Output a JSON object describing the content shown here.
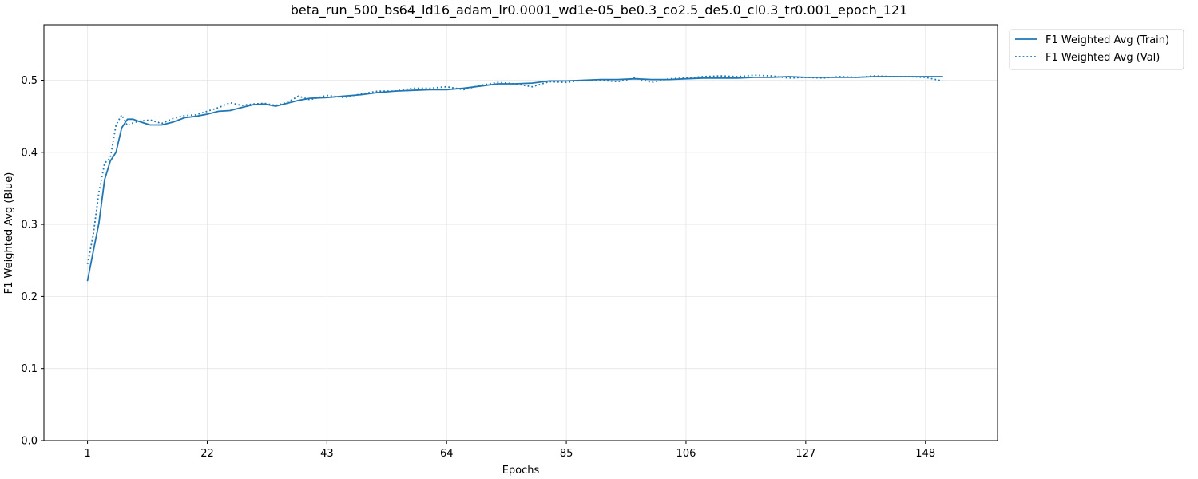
{
  "chart_data": {
    "type": "line",
    "title": "beta_run_500_bs64_ld16_adam_lr0.0001_wd1e-05_be0.3_co2.5_de5.0_cl0.3_tr0.001_epoch_121",
    "xlabel": "Epochs",
    "ylabel": "F1 Weighted Avg (Blue)",
    "xlim": [
      -6.65,
      160.65
    ],
    "ylim": [
      0.0,
      0.577
    ],
    "xticks": [
      1,
      22,
      43,
      64,
      85,
      106,
      127,
      148
    ],
    "yticks": [
      0.0,
      0.1,
      0.2,
      0.3,
      0.4,
      0.5
    ],
    "ytick_labels": [
      "0.0",
      "0.1",
      "0.2",
      "0.3",
      "0.4",
      "0.5"
    ],
    "grid": true,
    "legend_position": "outside-top-right",
    "colors": {
      "line": "#1f77b4",
      "grid": "#e6e6e6"
    },
    "series": [
      {
        "name": "F1 Weighted Avg (Train)",
        "style": "solid",
        "x": [
          1,
          2,
          3,
          4,
          5,
          6,
          7,
          8,
          9,
          10,
          12,
          14,
          16,
          18,
          20,
          22,
          24,
          26,
          28,
          30,
          32,
          34,
          36,
          38,
          40,
          43,
          46,
          49,
          52,
          55,
          58,
          61,
          64,
          67,
          70,
          73,
          76,
          79,
          82,
          85,
          88,
          91,
          94,
          97,
          100,
          103,
          106,
          109,
          112,
          115,
          118,
          121,
          124,
          127,
          130,
          133,
          136,
          139,
          142,
          145,
          148,
          151
        ],
        "values": [
          0.222,
          0.262,
          0.302,
          0.362,
          0.388,
          0.4,
          0.434,
          0.446,
          0.446,
          0.443,
          0.438,
          0.438,
          0.442,
          0.448,
          0.45,
          0.453,
          0.457,
          0.458,
          0.462,
          0.466,
          0.467,
          0.464,
          0.468,
          0.472,
          0.475,
          0.476,
          0.478,
          0.48,
          0.483,
          0.485,
          0.486,
          0.487,
          0.487,
          0.489,
          0.492,
          0.495,
          0.495,
          0.496,
          0.499,
          0.499,
          0.5,
          0.501,
          0.501,
          0.502,
          0.501,
          0.501,
          0.502,
          0.503,
          0.503,
          0.503,
          0.504,
          0.504,
          0.505,
          0.504,
          0.504,
          0.504,
          0.504,
          0.505,
          0.505,
          0.505,
          0.505,
          0.505
        ]
      },
      {
        "name": "F1 Weighted Avg (Val)",
        "style": "dotted",
        "x": [
          1,
          2,
          3,
          4,
          5,
          6,
          7,
          8,
          9,
          10,
          12,
          14,
          16,
          18,
          20,
          22,
          24,
          26,
          28,
          30,
          32,
          34,
          36,
          38,
          40,
          43,
          46,
          49,
          52,
          55,
          58,
          61,
          64,
          67,
          70,
          73,
          76,
          79,
          82,
          85,
          88,
          91,
          94,
          97,
          100,
          103,
          106,
          109,
          112,
          115,
          118,
          121,
          124,
          127,
          130,
          133,
          136,
          139,
          142,
          145,
          148,
          151
        ],
        "values": [
          0.245,
          0.285,
          0.345,
          0.385,
          0.392,
          0.438,
          0.452,
          0.437,
          0.441,
          0.443,
          0.445,
          0.44,
          0.447,
          0.451,
          0.452,
          0.457,
          0.462,
          0.469,
          0.465,
          0.467,
          0.468,
          0.465,
          0.469,
          0.478,
          0.473,
          0.479,
          0.476,
          0.481,
          0.485,
          0.485,
          0.489,
          0.489,
          0.491,
          0.487,
          0.493,
          0.497,
          0.495,
          0.491,
          0.498,
          0.497,
          0.5,
          0.5,
          0.498,
          0.503,
          0.497,
          0.502,
          0.503,
          0.505,
          0.506,
          0.505,
          0.507,
          0.506,
          0.503,
          0.504,
          0.503,
          0.505,
          0.504,
          0.506,
          0.505,
          0.505,
          0.504,
          0.499
        ]
      }
    ]
  }
}
